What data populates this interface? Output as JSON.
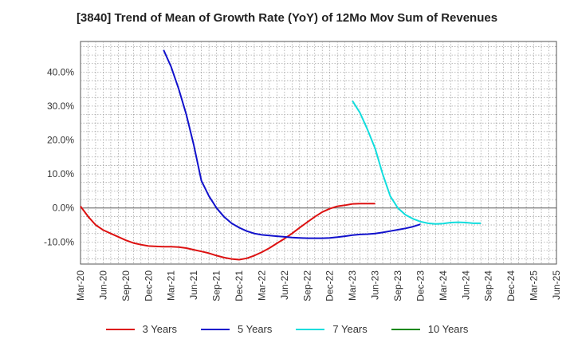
{
  "chart_data": {
    "type": "line",
    "title": "[3840]  Trend of Mean of Growth Rate (YoY) of 12Mo Mov Sum of Revenues",
    "xlabel": "",
    "ylabel": "",
    "ylim": [
      -16.5,
      49
    ],
    "y_ticks": [
      40,
      30,
      20,
      10,
      0,
      -10
    ],
    "y_tick_labels": [
      "40.0%",
      "30.0%",
      "20.0%",
      "10.0%",
      "0.0%",
      "-10.0%"
    ],
    "x_labels": [
      "Mar-20",
      "Jun-20",
      "Sep-20",
      "Dec-20",
      "Mar-21",
      "Jun-21",
      "Sep-21",
      "Dec-21",
      "Mar-22",
      "Jun-22",
      "Sep-22",
      "Dec-22",
      "Mar-23",
      "Jun-23",
      "Sep-23",
      "Dec-23",
      "Mar-24",
      "Jun-24",
      "Sep-24",
      "Dec-24",
      "Mar-25",
      "Jun-25"
    ],
    "grid": true,
    "legend_position": "bottom",
    "series": [
      {
        "name": "3 Years",
        "color": "#dd1111",
        "start_index": 0,
        "values": [
          0.5,
          -2.5,
          -5.0,
          -6.5,
          -7.5,
          -8.5,
          -9.5,
          -10.3,
          -10.8,
          -11.2,
          -11.3,
          -11.4,
          -11.4,
          -11.5,
          -11.8,
          -12.3,
          -12.8,
          -13.3,
          -14.0,
          -14.6,
          -15.0,
          -15.2,
          -14.8,
          -14.0,
          -13.0,
          -11.8,
          -10.4,
          -9.0,
          -7.5,
          -5.8,
          -4.2,
          -2.6,
          -1.2,
          -0.2,
          0.5,
          0.8,
          1.2,
          1.3,
          1.3,
          1.3
        ]
      },
      {
        "name": "5 Years",
        "color": "#1111cc",
        "start_index": 11,
        "values": [
          46.5,
          41.5,
          35.0,
          27.5,
          18.5,
          8.0,
          3.5,
          0.0,
          -2.6,
          -4.5,
          -5.8,
          -6.8,
          -7.5,
          -7.9,
          -8.1,
          -8.3,
          -8.5,
          -8.7,
          -8.8,
          -8.9,
          -8.9,
          -8.9,
          -8.8,
          -8.6,
          -8.3,
          -8.0,
          -7.8,
          -7.7,
          -7.5,
          -7.2,
          -6.8,
          -6.4,
          -6.0,
          -5.5,
          -4.8
        ]
      },
      {
        "name": "7 Years",
        "color": "#11dddd",
        "start_index": 36,
        "values": [
          31.5,
          28.0,
          23.0,
          17.5,
          10.0,
          3.5,
          0.0,
          -2.0,
          -3.2,
          -4.0,
          -4.5,
          -4.7,
          -4.6,
          -4.3,
          -4.2,
          -4.3,
          -4.5,
          -4.5
        ]
      },
      {
        "name": "10 Years",
        "color": "#118811",
        "start_index": 0,
        "values": []
      }
    ]
  }
}
